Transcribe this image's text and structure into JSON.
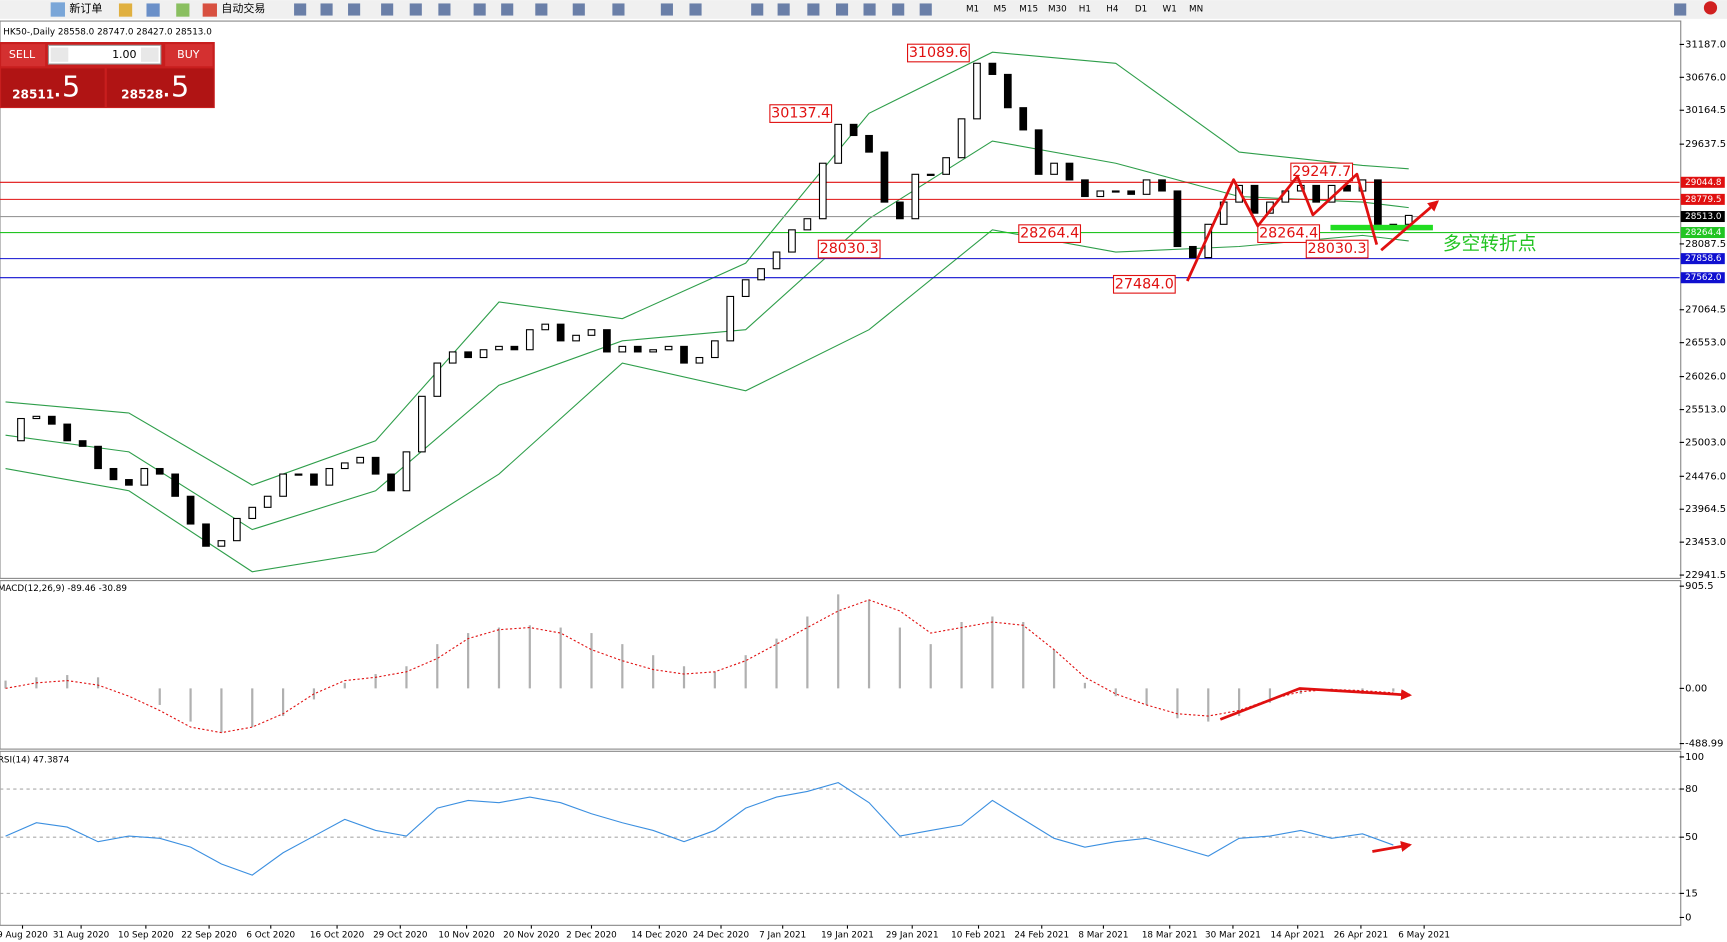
{
  "toolbar": {
    "new_order": "新订单",
    "auto_trading": "自动交易",
    "timeframes": [
      "M1",
      "M5",
      "M15",
      "M30",
      "H1",
      "H4",
      "D1",
      "W1",
      "MN"
    ]
  },
  "trade_panel": {
    "sell": "SELL",
    "buy": "BUY",
    "lots": "1.00",
    "sell_price": "28511",
    "sell_fraction": ".5",
    "buy_price": "28528",
    "buy_fraction": ".5"
  },
  "chart": {
    "header": "HK50-,Daily 28558.0 28747.0 28427.0 28513.0",
    "xlim": [
      -0.36,
      108.57
    ],
    "xticks": [
      {
        "value": 1.1,
        "label": "9 Aug 2020"
      },
      {
        "value": 4.9,
        "label": "31 Aug 2020"
      },
      {
        "value": 9.1,
        "label": "10 Sep 2020"
      },
      {
        "value": 13.2,
        "label": "22 Sep 2020"
      },
      {
        "value": 17.2,
        "label": "6 Oct 2020"
      },
      {
        "value": 21.5,
        "label": "16 Oct 2020"
      },
      {
        "value": 25.6,
        "label": "29 Oct 2020"
      },
      {
        "value": 29.9,
        "label": "10 Nov 2020"
      },
      {
        "value": 34.1,
        "label": "20 Nov 2020"
      },
      {
        "value": 38,
        "label": "2 Dec 2020"
      },
      {
        "value": 42.4,
        "label": "14 Dec 2020"
      },
      {
        "value": 46.4,
        "label": "24 Dec 2020"
      },
      {
        "value": 50.4,
        "label": "7 Jan 2021"
      },
      {
        "value": 54.6,
        "label": "19 Jan 2021"
      },
      {
        "value": 58.8,
        "label": "29 Jan 2021"
      },
      {
        "value": 63.1,
        "label": "10 Feb 2021"
      },
      {
        "value": 67.2,
        "label": "24 Feb 2021"
      },
      {
        "value": 71.2,
        "label": "8 Mar 2021"
      },
      {
        "value": 75.5,
        "label": "18 Mar 2021"
      },
      {
        "value": 79.6,
        "label": "30 Mar 2021"
      },
      {
        "value": 83.8,
        "label": "14 Apr 2021"
      },
      {
        "value": 87.9,
        "label": "26 Apr 2021"
      },
      {
        "value": 92,
        "label": "6 May 2021"
      }
    ],
    "price": {
      "ylim": [
        22890,
        31550
      ],
      "yticks": [
        {
          "value": 31187,
          "label": "31187.0"
        },
        {
          "value": 30676,
          "label": "30676.0"
        },
        {
          "value": 30164.5,
          "label": "30164.5"
        },
        {
          "value": 29637.5,
          "label": "29637.5"
        },
        {
          "value": 28087.5,
          "label": "28087.5"
        },
        {
          "value": 27064.5,
          "label": "27064.5"
        },
        {
          "value": 26553,
          "label": "26553.0"
        },
        {
          "value": 26026,
          "label": "26026.0"
        },
        {
          "value": 25513,
          "label": "25513.0"
        },
        {
          "value": 25003,
          "label": "25003.0"
        },
        {
          "value": 24476,
          "label": "24476.0"
        },
        {
          "value": 23964.5,
          "label": "23964.5"
        },
        {
          "value": 23453,
          "label": "23453.0"
        },
        {
          "value": 22941.5,
          "label": "22941.5"
        }
      ],
      "up_color": "#ffffff",
      "down_color": "#000000",
      "closes": [
        25029,
        25374,
        25408,
        25287,
        25029,
        24942,
        24597,
        24425,
        24339,
        24597,
        24511,
        24166,
        23735,
        23390,
        23476,
        23821,
        23994,
        24166,
        24511,
        24511,
        24339,
        24597,
        24684,
        24770,
        24511,
        24252,
        24856,
        25719,
        26236,
        26409,
        26322,
        26443,
        26495,
        26443,
        26754,
        26840,
        26581,
        26667,
        26754,
        26409,
        26495,
        26409,
        26443,
        26495,
        26236,
        26322,
        26581,
        27271,
        27530,
        27702,
        27961,
        28306,
        28479,
        29341,
        29945,
        29772,
        29514,
        28737,
        28479,
        29169,
        29169,
        29427,
        30031,
        30894,
        30721,
        30204,
        29859,
        29169,
        29341,
        29082,
        28824,
        28910,
        28910,
        28858,
        29082,
        28910,
        28047,
        27875,
        28392,
        28737,
        28996,
        28565,
        28737,
        28910,
        28996,
        28737,
        28996,
        28910,
        29082,
        28392,
        28392,
        28530
      ],
      "bands": {
        "color": "#2e9e4a",
        "x": [
          0,
          8,
          16,
          24,
          32,
          40,
          48,
          56,
          64,
          72,
          80,
          88,
          91
        ],
        "upper": [
          25632,
          25460,
          24339,
          25029,
          27185,
          26926,
          27789,
          30117,
          31066,
          30894,
          29514,
          29307,
          29255
        ],
        "middle": [
          25115,
          24856,
          23649,
          24252,
          25891,
          26581,
          26754,
          28479,
          29686,
          29341,
          28824,
          28737,
          28651
        ],
        "lower": [
          24597,
          24252,
          22993,
          23304,
          24511,
          26236,
          25805,
          26754,
          28306,
          27961,
          28047,
          28220,
          28134
        ]
      },
      "levels": [
        {
          "value": 29044.8,
          "label": "29044.8",
          "color": "#e01010"
        },
        {
          "value": 28779.5,
          "label": "28779.5",
          "color": "#e01010"
        },
        {
          "value": 28264.4,
          "label": "28264.4",
          "color": "#22c422"
        },
        {
          "value": 27858.6,
          "label": "27858.6",
          "color": "#1010d0"
        },
        {
          "value": 27562,
          "label": "27562.0",
          "color": "#1010d0"
        }
      ],
      "current": {
        "value": 28513,
        "label": "28513.0",
        "color": "#999999"
      },
      "annotations": [
        "31089.6",
        "30137.4",
        "28030.3",
        "28264.4",
        "27484.0",
        "29247.7",
        "28264.4",
        "28030.3"
      ],
      "note": "多空转折点"
    },
    "macd": {
      "header": "MACD(12,26,9) -89.46 -30.89",
      "ylim": [
        -538,
        955
      ],
      "yticks": [
        {
          "value": 905.5,
          "label": "905.5"
        },
        {
          "value": 0,
          "label": "0.00"
        },
        {
          "value": -488.99,
          "label": "-488.99"
        }
      ],
      "x": [
        0,
        2,
        4,
        6,
        8,
        10,
        12,
        14,
        16,
        18,
        20,
        22,
        24,
        26,
        28,
        30,
        32,
        34,
        36,
        38,
        40,
        42,
        44,
        46,
        48,
        50,
        52,
        54,
        56,
        58,
        60,
        62,
        64,
        66,
        68,
        70,
        72,
        74,
        76,
        78,
        80,
        82,
        84,
        86,
        88,
        90
      ],
      "hist_color": "#b0b0b0",
      "signal_color": "#e01010",
      "histogram": [
        69,
        98,
        118,
        98,
        0,
        -147,
        -294,
        -392,
        -343,
        -245,
        -98,
        49,
        127,
        196,
        392,
        490,
        539,
        559,
        539,
        490,
        392,
        294,
        196,
        147,
        294,
        441,
        637,
        833,
        784,
        539,
        392,
        588,
        637,
        588,
        343,
        49,
        -69,
        -147,
        -265,
        -294,
        -245,
        -127,
        -49,
        -29,
        -49,
        -29
      ],
      "signal": [
        0,
        49,
        69,
        29,
        -69,
        -196,
        -343,
        -392,
        -343,
        -225,
        -49,
        69,
        98,
        147,
        265,
        441,
        520,
        539,
        490,
        343,
        245,
        167,
        127,
        147,
        245,
        392,
        539,
        686,
        784,
        686,
        490,
        539,
        588,
        559,
        343,
        98,
        -49,
        -147,
        -225,
        -245,
        -196,
        -98,
        -29,
        -10,
        -20,
        -39
      ]
    },
    "rsi": {
      "header": "RSI(14) 47.3874",
      "ylim": [
        -4.9,
        103.5
      ],
      "yticks": [
        100,
        80,
        50,
        15,
        0
      ],
      "levels": [
        80,
        50,
        15
      ],
      "color": "#3b8fe0",
      "x": [
        0,
        2,
        4,
        6,
        8,
        10,
        12,
        14,
        16,
        18,
        20,
        22,
        24,
        26,
        28,
        30,
        32,
        34,
        36,
        38,
        40,
        42,
        44,
        46,
        48,
        50,
        52,
        54,
        56,
        58,
        60,
        62,
        64,
        66,
        68,
        70,
        72,
        74,
        76,
        78,
        80,
        82,
        84,
        86,
        88,
        90
      ],
      "values": [
        50.7,
        59,
        56.3,
        47.2,
        50.7,
        49.3,
        43.8,
        33.3,
        26.4,
        40.3,
        50.7,
        61.1,
        54.2,
        50.7,
        68.1,
        72.9,
        71.5,
        75,
        71.5,
        64.6,
        59,
        54.2,
        47.2,
        54.2,
        68.1,
        75,
        78.5,
        84,
        71.5,
        50.7,
        54.2,
        57.6,
        72.9,
        61.1,
        49.3,
        43.8,
        47.2,
        49.3,
        43.8,
        38.2,
        49.3,
        50.7,
        54.2,
        49.3,
        52.1,
        45.1
      ]
    }
  }
}
